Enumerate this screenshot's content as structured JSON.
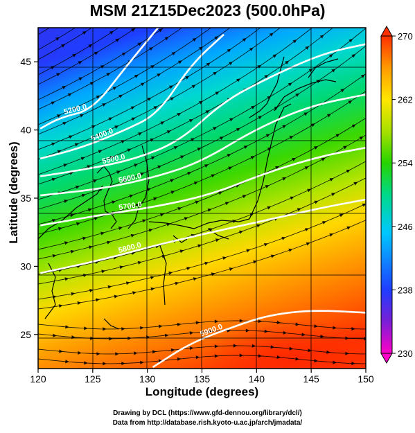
{
  "title": "MSM 21Z15Dec2023 (500.0hPa)",
  "xlabel": "Longitude (degrees)",
  "ylabel": "Latitude  (degrees)",
  "credits": {
    "line1": "Drawing by DCL (https://www.gfd-dennou.org/library/dcl/)",
    "line2": "Data from http://database.rish.kyoto-u.ac.jp/arch/jmadata/"
  },
  "chart_data": {
    "type": "heatmap",
    "x_range": [
      120,
      150
    ],
    "y_range": [
      22.5,
      47.5
    ],
    "x_ticks": [
      120,
      125,
      130,
      135,
      140,
      145,
      150
    ],
    "y_ticks": [
      25,
      30,
      35,
      40,
      45
    ],
    "colorbar": {
      "min": 230,
      "max": 270,
      "ticks": [
        230,
        238,
        246,
        254,
        262,
        270
      ],
      "colors": [
        "#ff00c8",
        "#7a1fd6",
        "#1f3dff",
        "#00c8ff",
        "#00d98a",
        "#26d400",
        "#a8e000",
        "#ffe600",
        "#ff9a00",
        "#ff3000"
      ]
    },
    "contour_labels": [
      "5200.0",
      "5400.0",
      "5500.0",
      "5600.0",
      "5700.0",
      "5800.0",
      "5900.0"
    ],
    "contours": [
      {
        "label": "5200.0",
        "points": [
          [
            120.2,
            40.1
          ],
          [
            122,
            40.9
          ],
          [
            125,
            41.5
          ],
          [
            128,
            44.6
          ],
          [
            131.5,
            48.0
          ]
        ]
      },
      {
        "label": "5400.0",
        "points": [
          [
            120.2,
            37.9
          ],
          [
            124,
            38.7
          ],
          [
            128,
            40.0
          ],
          [
            131,
            41.2
          ],
          [
            134,
            44.8
          ],
          [
            137,
            47.0
          ]
        ]
      },
      {
        "label": "5500.0",
        "points": [
          [
            120.2,
            36.6
          ],
          [
            125,
            37.2
          ],
          [
            129,
            37.9
          ],
          [
            133,
            39.2
          ],
          [
            137,
            42.1
          ],
          [
            141,
            43.8
          ],
          [
            146,
            45.6
          ],
          [
            150,
            46.3
          ]
        ]
      },
      {
        "label": "5600.0",
        "points": [
          [
            120.2,
            35.2
          ],
          [
            126,
            35.7
          ],
          [
            131,
            36.6
          ],
          [
            135,
            37.7
          ],
          [
            140,
            40.1
          ],
          [
            145,
            41.8
          ],
          [
            150,
            42.6
          ]
        ]
      },
      {
        "label": "5700.0",
        "points": [
          [
            120.2,
            33.0
          ],
          [
            126,
            33.8
          ],
          [
            131,
            34.4
          ],
          [
            136,
            35.3
          ],
          [
            141,
            36.9
          ],
          [
            146,
            38.1
          ],
          [
            150,
            38.7
          ]
        ]
      },
      {
        "label": "5800.0",
        "points": [
          [
            120.2,
            29.5
          ],
          [
            126,
            30.5
          ],
          [
            131,
            31.6
          ],
          [
            137,
            32.7
          ],
          [
            141,
            33.4
          ],
          [
            146,
            34.3
          ],
          [
            150,
            34.9
          ]
        ]
      },
      {
        "label": "5900.0",
        "points": [
          [
            130.5,
            22.6
          ],
          [
            134,
            24.4
          ],
          [
            138,
            25.6
          ],
          [
            141,
            26.4
          ],
          [
            145,
            26.8
          ],
          [
            150,
            26.6
          ]
        ]
      }
    ],
    "grid": true
  }
}
